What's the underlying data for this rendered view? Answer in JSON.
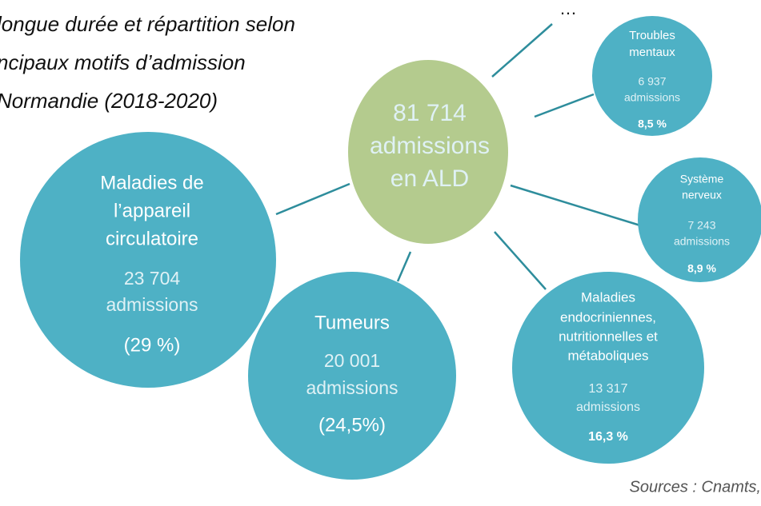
{
  "title": {
    "lines": [
      "longue durée et répartition selon",
      "ncipaux motifs d’admission",
      "Normandie (2018-2020)"
    ]
  },
  "more_label": "…",
  "center": {
    "lines": [
      "81 714",
      "admissions",
      "en ALD"
    ]
  },
  "nodes": [
    {
      "label": [
        "Maladies de",
        "l’appareil",
        "circulatoire"
      ],
      "count": "23 704",
      "unit": "admissions",
      "share": "(29 %)"
    },
    {
      "label": [
        "Tumeurs"
      ],
      "count": "20 001",
      "unit": "admissions",
      "share": "(24,5%)"
    },
    {
      "label": [
        "Maladies",
        "endocriniennes,",
        "nutritionnelles et",
        "métaboliques"
      ],
      "count": "13 317",
      "unit": "admissions",
      "share": "16,3 %"
    },
    {
      "label": [
        "Système",
        "nerveux"
      ],
      "count": "7 243",
      "unit": "admissions",
      "share": "8,9 %"
    },
    {
      "label": [
        "Troubles",
        "mentaux"
      ],
      "count": "6 937",
      "unit": "admissions",
      "share": "8,5 %"
    }
  ],
  "source": "Sources : Cnamts,"
}
